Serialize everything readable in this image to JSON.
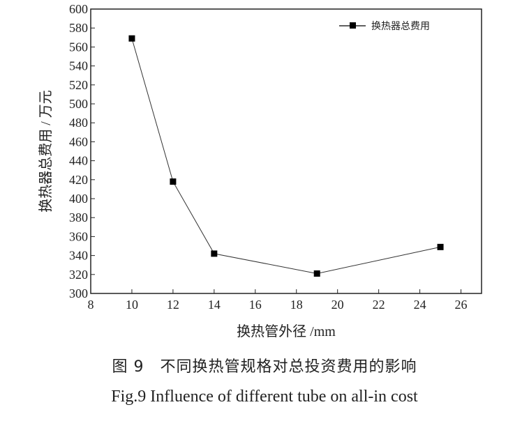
{
  "chart_data": {
    "type": "line",
    "title": "",
    "xlabel": "换热管外径 /mm",
    "ylabel": "换热器总费用 / 万元",
    "x": [
      10,
      12,
      14,
      19,
      25
    ],
    "series": [
      {
        "name": "换热器总费用",
        "values": [
          569,
          418,
          342,
          321,
          349
        ],
        "marker": "square",
        "color": "#000000"
      }
    ],
    "xlim": [
      8,
      27
    ],
    "ylim": [
      300,
      600
    ],
    "xticks": [
      8,
      10,
      12,
      14,
      16,
      18,
      20,
      22,
      24,
      26
    ],
    "yticks": [
      300,
      320,
      340,
      360,
      380,
      400,
      420,
      440,
      460,
      480,
      500,
      520,
      540,
      560,
      580,
      600
    ],
    "grid": false,
    "legend_position": "top-right"
  },
  "caption": {
    "zh": "图 9　不同换热管规格对总投资费用的影响",
    "en": "Fig.9  Influence of different tube on all-in cost"
  }
}
